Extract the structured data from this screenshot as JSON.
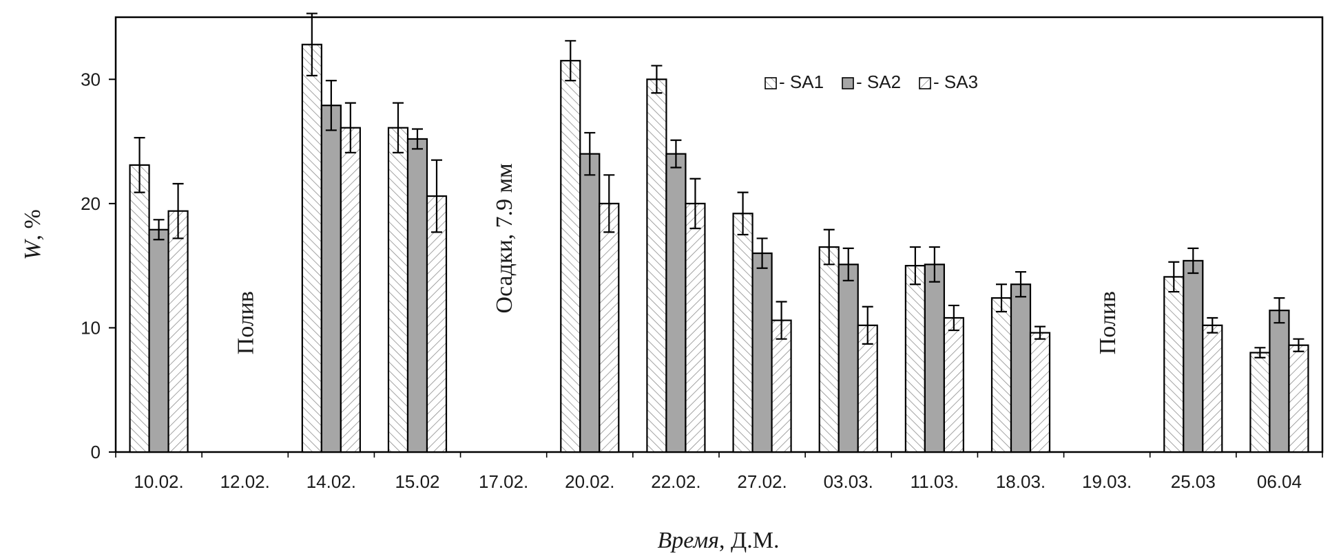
{
  "chart_data": {
    "type": "bar",
    "title": "",
    "xlabel": "Время, Д.М.",
    "xlabel_italic_part": "Время",
    "xlabel_rest": ", Д.М.",
    "ylabel": "W, %",
    "ylabel_italic_part": "W",
    "ylabel_rest": ", %",
    "ylim": [
      0,
      35
    ],
    "yticks": [
      0,
      10,
      20,
      30
    ],
    "grid": false,
    "legend_position": "top-right",
    "categories": [
      "10.02.",
      "12.02.",
      "14.02.",
      "15.02",
      "17.02.",
      "20.02.",
      "22.02.",
      "27.02.",
      "03.03.",
      "11.03.",
      "18.03.",
      "19.03.",
      "25.03",
      "06.04"
    ],
    "series": [
      {
        "name": "- SA1",
        "fill": "hatch-right",
        "color": "#ffffff",
        "values": [
          23.1,
          null,
          32.8,
          26.1,
          null,
          31.5,
          30.0,
          19.2,
          16.5,
          15.0,
          12.4,
          null,
          14.1,
          8.0
        ],
        "errors": [
          2.2,
          null,
          2.5,
          2.0,
          null,
          1.6,
          1.1,
          1.7,
          1.4,
          1.5,
          1.1,
          null,
          1.2,
          0.4
        ]
      },
      {
        "name": "- SA2",
        "fill": "solid",
        "color": "#a6a6a6",
        "values": [
          17.9,
          null,
          27.9,
          25.2,
          null,
          24.0,
          24.0,
          16.0,
          15.1,
          15.1,
          13.5,
          null,
          15.4,
          11.4
        ],
        "errors": [
          0.8,
          null,
          2.0,
          0.8,
          null,
          1.7,
          1.1,
          1.2,
          1.3,
          1.4,
          1.0,
          null,
          1.0,
          1.0
        ]
      },
      {
        "name": "- SA3",
        "fill": "hatch-left",
        "color": "#ffffff",
        "values": [
          19.4,
          null,
          26.1,
          20.6,
          null,
          20.0,
          20.0,
          10.6,
          10.2,
          10.8,
          9.6,
          null,
          10.2,
          8.6
        ],
        "errors": [
          2.2,
          null,
          2.0,
          2.9,
          null,
          2.3,
          2.0,
          1.5,
          1.5,
          1.0,
          0.5,
          null,
          0.6,
          0.5
        ]
      }
    ],
    "annotations": [
      {
        "text": "Полив",
        "category_index": 1,
        "y_value": 10.4,
        "rotation": -90
      },
      {
        "text": "Осадки, 7.9 мм",
        "category_index": 4,
        "y_value": 17.2,
        "rotation": -90
      },
      {
        "text": "Полив",
        "category_index": 11,
        "y_value": 10.4,
        "rotation": -90
      }
    ]
  }
}
